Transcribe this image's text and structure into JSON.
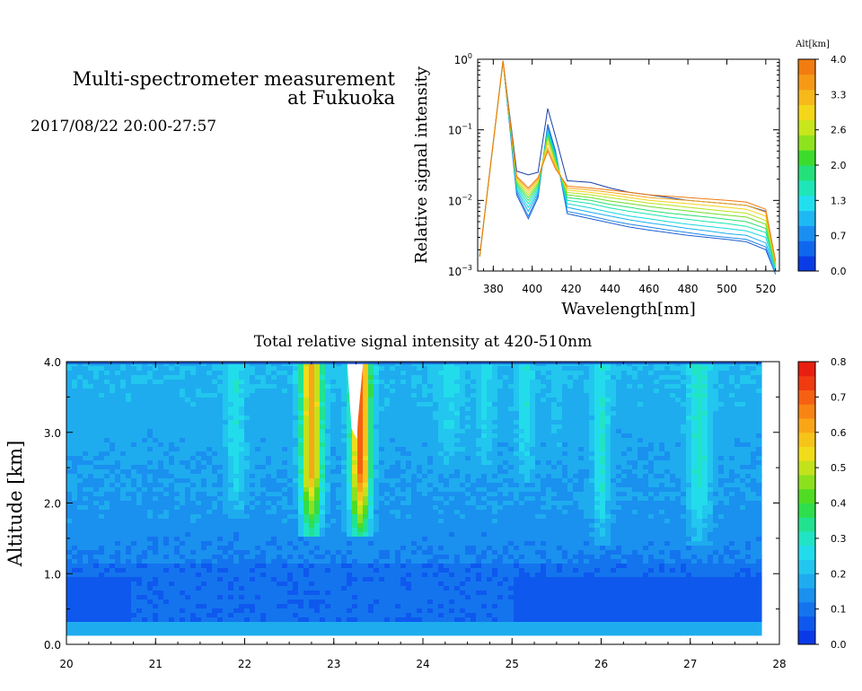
{
  "header": {
    "title_line1": "Multi-spectrometer measurement",
    "title_line2": "at Fukuoka",
    "datetime": "2017/08/22 20:00-27:57"
  },
  "chart_data": [
    {
      "type": "line",
      "xlabel": "Wavelength[nm]",
      "ylabel": "Relative signal intensity",
      "xlim": [
        372,
        527
      ],
      "ylim": [
        0.001,
        1
      ],
      "yscale": "log",
      "x_ticks": [
        380,
        400,
        420,
        440,
        460,
        480,
        500,
        520
      ],
      "y_ticks": [
        {
          "value": 1,
          "label": "10",
          "exp": "0"
        },
        {
          "value": 0.1,
          "label": "10",
          "exp": "−1"
        },
        {
          "value": 0.01,
          "label": "10",
          "exp": "−2"
        },
        {
          "value": 0.001,
          "label": "10",
          "exp": "−3"
        }
      ],
      "grid": false,
      "x": [
        373,
        385,
        392,
        398,
        403,
        408,
        412,
        418,
        430,
        440,
        450,
        460,
        470,
        480,
        490,
        500,
        510,
        520,
        525
      ],
      "series": [
        {
          "alt_km": 0.0,
          "color": "#1a3fa8",
          "values": [
            0.0016,
            0.95,
            0.026,
            0.023,
            0.025,
            0.2,
            0.08,
            0.019,
            0.018,
            0.015,
            0.013,
            0.012,
            0.011,
            0.01,
            0.0095,
            0.009,
            0.0085,
            0.007,
            0.0012
          ]
        },
        {
          "alt_km": 0.2,
          "color": "#1f5fd0",
          "values": [
            0.0016,
            0.95,
            0.012,
            0.0055,
            0.011,
            0.12,
            0.05,
            0.0065,
            0.0055,
            0.0048,
            0.0042,
            0.0038,
            0.0035,
            0.0032,
            0.003,
            0.0028,
            0.0026,
            0.002,
            0.0009
          ]
        },
        {
          "alt_km": 0.5,
          "color": "#1f85e8",
          "values": [
            0.0016,
            0.95,
            0.013,
            0.006,
            0.012,
            0.11,
            0.048,
            0.007,
            0.006,
            0.0052,
            0.0046,
            0.0042,
            0.0038,
            0.0035,
            0.0032,
            0.003,
            0.0028,
            0.0022,
            0.0009
          ]
        },
        {
          "alt_km": 0.8,
          "color": "#18b0ef",
          "values": [
            0.0016,
            0.95,
            0.014,
            0.007,
            0.013,
            0.1,
            0.045,
            0.008,
            0.0068,
            0.006,
            0.0053,
            0.0048,
            0.0044,
            0.004,
            0.0037,
            0.0034,
            0.0032,
            0.0025,
            0.001
          ]
        },
        {
          "alt_km": 1.1,
          "color": "#14d8e0",
          "values": [
            0.0016,
            0.95,
            0.015,
            0.008,
            0.014,
            0.095,
            0.042,
            0.009,
            0.0078,
            0.0068,
            0.006,
            0.0055,
            0.005,
            0.0046,
            0.0043,
            0.004,
            0.0037,
            0.003,
            0.001
          ]
        },
        {
          "alt_km": 1.4,
          "color": "#14e6b0",
          "values": [
            0.0016,
            0.95,
            0.016,
            0.009,
            0.015,
            0.09,
            0.04,
            0.01,
            0.009,
            0.0078,
            0.007,
            0.0064,
            0.0058,
            0.0054,
            0.005,
            0.0047,
            0.0043,
            0.0035,
            0.0011
          ]
        },
        {
          "alt_km": 1.8,
          "color": "#27e070",
          "values": [
            0.0016,
            0.95,
            0.017,
            0.01,
            0.016,
            0.085,
            0.038,
            0.011,
            0.01,
            0.0088,
            0.008,
            0.0072,
            0.0066,
            0.0062,
            0.0058,
            0.0054,
            0.005,
            0.004,
            0.0011
          ]
        },
        {
          "alt_km": 2.2,
          "color": "#6ede28",
          "values": [
            0.0016,
            0.95,
            0.018,
            0.011,
            0.017,
            0.08,
            0.036,
            0.012,
            0.011,
            0.0098,
            0.009,
            0.0082,
            0.0076,
            0.0071,
            0.0066,
            0.0062,
            0.0058,
            0.0046,
            0.0012
          ]
        },
        {
          "alt_km": 2.6,
          "color": "#b8e21c",
          "values": [
            0.0016,
            0.95,
            0.019,
            0.012,
            0.018,
            0.075,
            0.034,
            0.013,
            0.012,
            0.011,
            0.01,
            0.0092,
            0.0086,
            0.008,
            0.0075,
            0.007,
            0.0066,
            0.0052,
            0.0012
          ]
        },
        {
          "alt_km": 3.0,
          "color": "#f2d21a",
          "values": [
            0.0016,
            0.95,
            0.02,
            0.013,
            0.019,
            0.065,
            0.032,
            0.014,
            0.013,
            0.012,
            0.011,
            0.01,
            0.0095,
            0.009,
            0.0085,
            0.008,
            0.0075,
            0.006,
            0.0013
          ]
        },
        {
          "alt_km": 3.5,
          "color": "#f7a81a",
          "values": [
            0.0016,
            0.95,
            0.021,
            0.014,
            0.02,
            0.055,
            0.03,
            0.015,
            0.014,
            0.013,
            0.012,
            0.011,
            0.0105,
            0.01,
            0.0095,
            0.009,
            0.0085,
            0.0068,
            0.0013
          ]
        },
        {
          "alt_km": 3.9,
          "color": "#f07a10",
          "values": [
            0.0016,
            0.95,
            0.022,
            0.015,
            0.021,
            0.05,
            0.028,
            0.016,
            0.015,
            0.014,
            0.013,
            0.012,
            0.0115,
            0.011,
            0.0105,
            0.01,
            0.0095,
            0.0075,
            0.0014
          ]
        }
      ],
      "colorbar": {
        "title": "Alt[km]",
        "range": [
          0.0,
          4.0
        ],
        "tick_labels": [
          "4.0",
          "3.3",
          "2.6",
          "2.0",
          "1.3",
          "0.7",
          "0.0"
        ],
        "colors": [
          "#0a3ce6",
          "#0f67ee",
          "#1a8ff2",
          "#1eb8f2",
          "#22dff0",
          "#1ee6b8",
          "#24e07a",
          "#3cdc2c",
          "#8ee21e",
          "#c8e61c",
          "#f4d61a",
          "#f7b81a",
          "#f69a16",
          "#f27c10"
        ]
      }
    },
    {
      "type": "heatmap",
      "title": "Total relative signal intensity at 420-510nm",
      "xlabel": "",
      "ylabel": "Altitude [km]",
      "xlim": [
        20,
        28
      ],
      "ylim": [
        0.0,
        4.0
      ],
      "x_ticks": [
        20,
        21,
        22,
        23,
        24,
        25,
        26,
        27,
        28
      ],
      "y_ticks": [
        "0.0",
        "1.0",
        "2.0",
        "3.0",
        "4.0"
      ],
      "data_end_time": 27.8,
      "value_range": [
        0.0,
        0.8
      ],
      "features": {
        "surface_layer_value": 0.18,
        "low_layer_value": 0.06,
        "mid_layer_value": 0.12,
        "upper_layer_value": 0.2,
        "plumes": [
          {
            "center": 21.9,
            "width": 0.16,
            "peak": 0.27,
            "bottom_km": 1.8
          },
          {
            "center": 22.75,
            "width": 0.17,
            "peak": 0.62,
            "bottom_km": 1.5
          },
          {
            "center": 23.3,
            "width": 0.16,
            "peak": 0.7,
            "bottom_km": 1.5
          },
          {
            "center": 24.3,
            "width": 0.22,
            "peak": 0.25,
            "bottom_km": 2.5
          },
          {
            "center": 24.7,
            "width": 0.14,
            "peak": 0.25,
            "bottom_km": 2.4
          },
          {
            "center": 25.15,
            "width": 0.14,
            "peak": 0.27,
            "bottom_km": 2.3
          },
          {
            "center": 25.5,
            "width": 0.1,
            "peak": 0.22,
            "bottom_km": 2.6
          },
          {
            "center": 26.0,
            "width": 0.14,
            "peak": 0.28,
            "bottom_km": 1.4
          },
          {
            "center": 27.1,
            "width": 0.18,
            "peak": 0.3,
            "bottom_km": 1.4
          }
        ],
        "saturated_region": {
          "time_start": 23.15,
          "time_end": 23.33,
          "alt_bottom_km": 2.9
        }
      },
      "colorbar": {
        "range": [
          0.0,
          0.8
        ],
        "tick_labels": [
          "0.8",
          "0.7",
          "0.6",
          "0.5",
          "0.4",
          "0.3",
          "0.2",
          "0.1",
          "0.0"
        ],
        "colors": [
          "#0a3ae8",
          "#0e58ee",
          "#1474ee",
          "#1a90ef",
          "#1eacef",
          "#22c6ee",
          "#22dcec",
          "#20e4c4",
          "#22e290",
          "#2ede4c",
          "#50dc22",
          "#8ce01e",
          "#c2e21c",
          "#f0dc1a",
          "#f6c418",
          "#f8a616",
          "#f88414",
          "#f66012",
          "#f03a10",
          "#e81e10"
        ]
      }
    }
  ]
}
